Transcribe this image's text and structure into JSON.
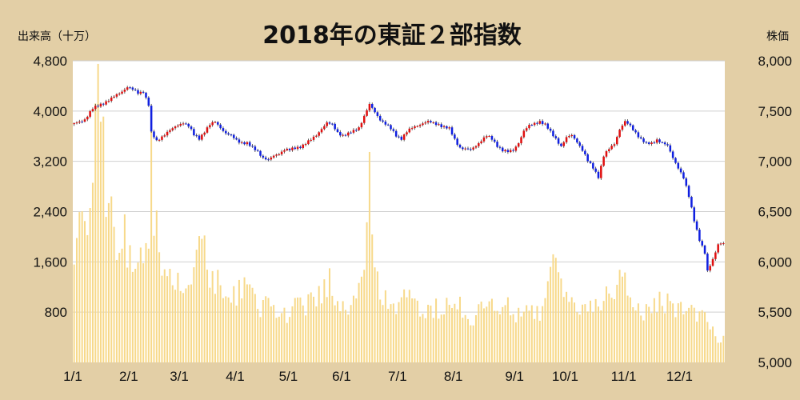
{
  "chart_data": {
    "type": "candlestick+bar",
    "title": "2018年の東証２部指数",
    "left_axis_label": "出来高（十万）",
    "right_axis_label": "株価",
    "left_ylim": [
      0,
      4800
    ],
    "left_ticks": [
      "800",
      "1,600",
      "2,400",
      "3,200",
      "4,000",
      "4,800"
    ],
    "right_ylim": [
      5000,
      8000
    ],
    "right_ticks": [
      "5,000",
      "5,500",
      "6,000",
      "6,500",
      "7,000",
      "7,500",
      "8,000"
    ],
    "x_ticks": [
      "1/1",
      "2/1",
      "3/1",
      "4/1",
      "5/1",
      "6/1",
      "7/1",
      "8/1",
      "9/1",
      "10/1",
      "11/1",
      "12/1"
    ],
    "grid": "horizontal",
    "colors": {
      "up": "#e01010",
      "down": "#1020e0",
      "volume": "#f7d98a",
      "background": "#ffffff",
      "frame": "#e3cfa6"
    },
    "price_path": [
      [
        0,
        7370
      ],
      [
        4,
        7420
      ],
      [
        7,
        7520
      ],
      [
        10,
        7570
      ],
      [
        14,
        7620
      ],
      [
        18,
        7700
      ],
      [
        20,
        7740
      ],
      [
        22,
        7710
      ],
      [
        24,
        7680
      ],
      [
        26,
        7700
      ],
      [
        28,
        7560
      ],
      [
        29,
        7280
      ],
      [
        31,
        7200
      ],
      [
        33,
        7250
      ],
      [
        35,
        7290
      ],
      [
        37,
        7320
      ],
      [
        39,
        7360
      ],
      [
        41,
        7390
      ],
      [
        43,
        7350
      ],
      [
        45,
        7260
      ],
      [
        47,
        7230
      ],
      [
        49,
        7300
      ],
      [
        51,
        7360
      ],
      [
        53,
        7390
      ],
      [
        55,
        7340
      ],
      [
        57,
        7280
      ],
      [
        59,
        7250
      ],
      [
        61,
        7210
      ],
      [
        63,
        7190
      ],
      [
        65,
        7180
      ],
      [
        67,
        7130
      ],
      [
        69,
        7100
      ],
      [
        71,
        7040
      ],
      [
        73,
        7010
      ],
      [
        75,
        7050
      ],
      [
        77,
        7080
      ],
      [
        79,
        7120
      ],
      [
        81,
        7110
      ],
      [
        83,
        7130
      ],
      [
        85,
        7150
      ],
      [
        87,
        7180
      ],
      [
        89,
        7210
      ],
      [
        91,
        7260
      ],
      [
        93,
        7330
      ],
      [
        95,
        7380
      ],
      [
        97,
        7360
      ],
      [
        99,
        7290
      ],
      [
        101,
        7260
      ],
      [
        103,
        7270
      ],
      [
        105,
        7300
      ],
      [
        107,
        7340
      ],
      [
        109,
        7450
      ],
      [
        111,
        7560
      ],
      [
        113,
        7490
      ],
      [
        115,
        7420
      ],
      [
        117,
        7370
      ],
      [
        119,
        7320
      ],
      [
        121,
        7260
      ],
      [
        123,
        7230
      ],
      [
        125,
        7290
      ],
      [
        127,
        7330
      ],
      [
        129,
        7360
      ],
      [
        131,
        7380
      ],
      [
        133,
        7390
      ],
      [
        135,
        7380
      ],
      [
        137,
        7370
      ],
      [
        139,
        7340
      ],
      [
        141,
        7320
      ],
      [
        143,
        7220
      ],
      [
        145,
        7140
      ],
      [
        147,
        7120
      ],
      [
        149,
        7110
      ],
      [
        151,
        7160
      ],
      [
        153,
        7210
      ],
      [
        155,
        7250
      ],
      [
        157,
        7220
      ],
      [
        159,
        7160
      ],
      [
        161,
        7110
      ],
      [
        163,
        7090
      ],
      [
        165,
        7110
      ],
      [
        167,
        7190
      ],
      [
        169,
        7300
      ],
      [
        171,
        7350
      ],
      [
        173,
        7380
      ],
      [
        175,
        7400
      ],
      [
        177,
        7360
      ],
      [
        179,
        7290
      ],
      [
        181,
        7230
      ],
      [
        183,
        7150
      ],
      [
        185,
        7230
      ],
      [
        187,
        7260
      ],
      [
        189,
        7200
      ],
      [
        191,
        7110
      ],
      [
        193,
        7000
      ],
      [
        195,
        6940
      ],
      [
        197,
        6850
      ],
      [
        199,
        7050
      ],
      [
        201,
        7120
      ],
      [
        203,
        7180
      ],
      [
        205,
        7320
      ],
      [
        207,
        7390
      ],
      [
        209,
        7350
      ],
      [
        211,
        7290
      ],
      [
        213,
        7220
      ],
      [
        215,
        7170
      ],
      [
        217,
        7180
      ],
      [
        219,
        7220
      ],
      [
        221,
        7180
      ],
      [
        223,
        7150
      ],
      [
        225,
        7040
      ],
      [
        227,
        6940
      ],
      [
        229,
        6830
      ],
      [
        231,
        6650
      ],
      [
        233,
        6420
      ],
      [
        235,
        6220
      ],
      [
        237,
        6080
      ],
      [
        238,
        5900
      ],
      [
        240,
        6030
      ],
      [
        242,
        6180
      ]
    ],
    "volume_path": [
      [
        0,
        1600
      ],
      [
        2,
        2400
      ],
      [
        4,
        2000
      ],
      [
        6,
        2200
      ],
      [
        8,
        4000
      ],
      [
        10,
        4300
      ],
      [
        12,
        2500
      ],
      [
        14,
        2300
      ],
      [
        16,
        2000
      ],
      [
        18,
        2300
      ],
      [
        20,
        1900
      ],
      [
        22,
        1700
      ],
      [
        24,
        1500
      ],
      [
        26,
        1700
      ],
      [
        28,
        1800
      ],
      [
        29,
        3500
      ],
      [
        30,
        2300
      ],
      [
        32,
        1900
      ],
      [
        34,
        1600
      ],
      [
        36,
        1400
      ],
      [
        38,
        1300
      ],
      [
        40,
        1300
      ],
      [
        42,
        1400
      ],
      [
        44,
        1400
      ],
      [
        46,
        1600
      ],
      [
        48,
        2000
      ],
      [
        50,
        1600
      ],
      [
        52,
        1400
      ],
      [
        54,
        1300
      ],
      [
        56,
        1200
      ],
      [
        58,
        1200
      ],
      [
        60,
        1100
      ],
      [
        62,
        1200
      ],
      [
        64,
        1200
      ],
      [
        66,
        1100
      ],
      [
        68,
        1000
      ],
      [
        70,
        900
      ],
      [
        72,
        1000
      ],
      [
        74,
        1100
      ],
      [
        76,
        900
      ],
      [
        78,
        800
      ],
      [
        80,
        800
      ],
      [
        82,
        900
      ],
      [
        84,
        900
      ],
      [
        86,
        900
      ],
      [
        88,
        1000
      ],
      [
        90,
        1000
      ],
      [
        92,
        1100
      ],
      [
        94,
        1200
      ],
      [
        96,
        1300
      ],
      [
        98,
        1000
      ],
      [
        100,
        900
      ],
      [
        102,
        900
      ],
      [
        104,
        900
      ],
      [
        106,
        1100
      ],
      [
        108,
        1500
      ],
      [
        110,
        2000
      ],
      [
        111,
        3200
      ],
      [
        112,
        2000
      ],
      [
        114,
        1300
      ],
      [
        116,
        1100
      ],
      [
        118,
        1000
      ],
      [
        120,
        900
      ],
      [
        122,
        900
      ],
      [
        124,
        1100
      ],
      [
        126,
        1000
      ],
      [
        128,
        900
      ],
      [
        130,
        800
      ],
      [
        132,
        900
      ],
      [
        134,
        800
      ],
      [
        136,
        900
      ],
      [
        138,
        800
      ],
      [
        140,
        900
      ],
      [
        142,
        900
      ],
      [
        144,
        1000
      ],
      [
        146,
        900
      ],
      [
        148,
        800
      ],
      [
        150,
        700
      ],
      [
        152,
        800
      ],
      [
        154,
        900
      ],
      [
        156,
        1000
      ],
      [
        158,
        900
      ],
      [
        160,
        800
      ],
      [
        162,
        900
      ],
      [
        164,
        900
      ],
      [
        166,
        800
      ],
      [
        168,
        800
      ],
      [
        170,
        900
      ],
      [
        172,
        800
      ],
      [
        174,
        800
      ],
      [
        176,
        900
      ],
      [
        178,
        1200
      ],
      [
        180,
        1600
      ],
      [
        182,
        1300
      ],
      [
        184,
        1200
      ],
      [
        186,
        1000
      ],
      [
        188,
        900
      ],
      [
        190,
        900
      ],
      [
        192,
        800
      ],
      [
        194,
        900
      ],
      [
        196,
        900
      ],
      [
        198,
        1000
      ],
      [
        200,
        1100
      ],
      [
        202,
        1000
      ],
      [
        204,
        1300
      ],
      [
        206,
        1600
      ],
      [
        208,
        1300
      ],
      [
        210,
        1000
      ],
      [
        212,
        900
      ],
      [
        214,
        800
      ],
      [
        216,
        900
      ],
      [
        218,
        900
      ],
      [
        220,
        1000
      ],
      [
        222,
        1000
      ],
      [
        224,
        900
      ],
      [
        226,
        800
      ],
      [
        228,
        900
      ],
      [
        230,
        900
      ],
      [
        232,
        800
      ],
      [
        234,
        800
      ],
      [
        236,
        900
      ],
      [
        238,
        700
      ],
      [
        240,
        500
      ],
      [
        242,
        400
      ]
    ]
  }
}
